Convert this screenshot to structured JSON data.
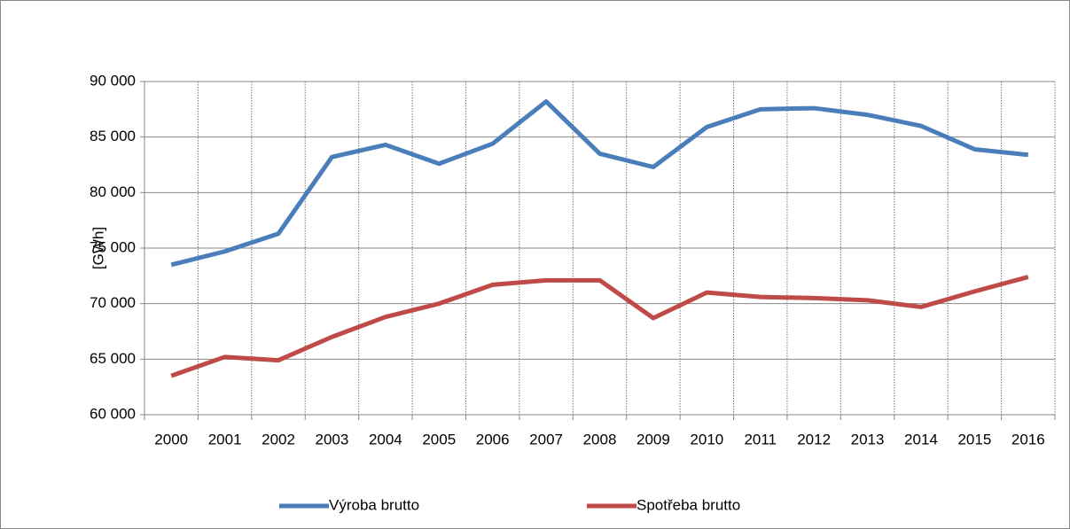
{
  "chart_data": {
    "type": "line",
    "y_label": "[GWh]",
    "categories": [
      "2000",
      "2001",
      "2002",
      "2003",
      "2004",
      "2005",
      "2006",
      "2007",
      "2008",
      "2009",
      "2010",
      "2011",
      "2012",
      "2013",
      "2014",
      "2015",
      "2016"
    ],
    "series": [
      {
        "name": "Výroba brutto",
        "color": "#4a7ebb",
        "values": [
          73500,
          74700,
          76300,
          83200,
          84300,
          82600,
          84400,
          88200,
          83500,
          82300,
          85900,
          87500,
          87600,
          87000,
          86000,
          83900,
          83400
        ]
      },
      {
        "name": "Spotřeba brutto",
        "color": "#be4b48",
        "values": [
          63500,
          65200,
          64900,
          67000,
          68800,
          70000,
          71700,
          72100,
          72100,
          68700,
          71000,
          70600,
          70500,
          70300,
          69700,
          71100,
          72400
        ]
      }
    ],
    "ylim": [
      60000,
      90000
    ],
    "yticks": [
      {
        "value": 60000,
        "label": "60 000"
      },
      {
        "value": 65000,
        "label": "65 000"
      },
      {
        "value": 70000,
        "label": "70 000"
      },
      {
        "value": 75000,
        "label": "75 000"
      },
      {
        "value": 80000,
        "label": "80 000"
      },
      {
        "value": 85000,
        "label": "85 000"
      },
      {
        "value": 90000,
        "label": "90 000"
      }
    ],
    "grid": true,
    "legend": "bottom"
  }
}
